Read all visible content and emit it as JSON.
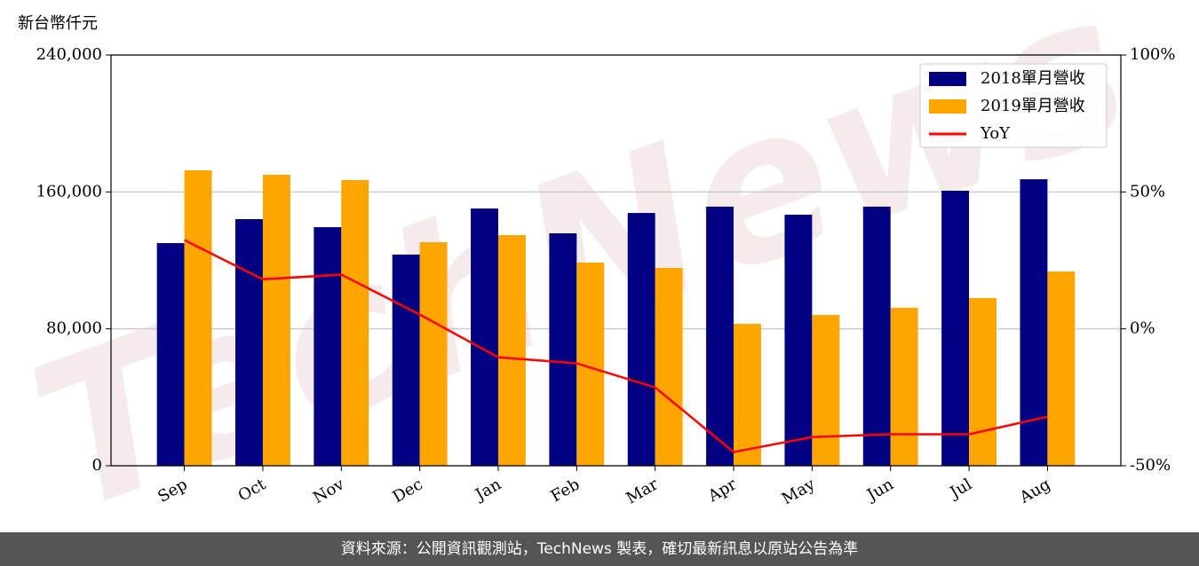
{
  "chart_data": {
    "type": "bar",
    "y_label": "新台幣仟元",
    "watermark": "TechNews",
    "footer": "資料來源：公開資訊觀測站，TechNews 製表，確切最新訊息以原站公告為準",
    "categories": [
      "Sep",
      "Oct",
      "Nov",
      "Dec",
      "Jan",
      "Feb",
      "Mar",
      "Apr",
      "May",
      "Jun",
      "Jul",
      "Aug"
    ],
    "series": [
      {
        "name": "2018單月營收",
        "color": "#000080",
        "type": "bar",
        "values": [
          130100,
          144100,
          139400,
          123400,
          150300,
          135800,
          147700,
          151400,
          146700,
          151400,
          160700,
          167400
        ]
      },
      {
        "name": "2019單月營收",
        "color": "#ffa500",
        "type": "bar",
        "values": [
          172600,
          170000,
          166900,
          130600,
          134800,
          118700,
          115600,
          82900,
          88100,
          92300,
          98000,
          113500
        ]
      },
      {
        "name": "YoY",
        "color": "#ff0000",
        "type": "line",
        "axis": "y2",
        "values": [
          32.4,
          18.1,
          19.8,
          5.2,
          -10.4,
          -12.6,
          -21.4,
          -45.0,
          -39.5,
          -38.5,
          -38.5,
          -32.1
        ]
      }
    ],
    "ylim": [
      0,
      240000
    ],
    "yticks": [
      0,
      {
        "value": 80000,
        "label": "80,000"
      },
      {
        "value": 160000,
        "label": "160,000"
      },
      {
        "value": 240000,
        "label": "240,000"
      }
    ],
    "y2lim": [
      -50,
      100
    ],
    "y2ticks": [
      {
        "value": -50,
        "label": "-50%"
      },
      {
        "value": 0,
        "label": "0%"
      },
      {
        "value": 50,
        "label": "50%"
      },
      {
        "value": 100,
        "label": "100%"
      }
    ],
    "grid": true,
    "legend": "upper right"
  }
}
